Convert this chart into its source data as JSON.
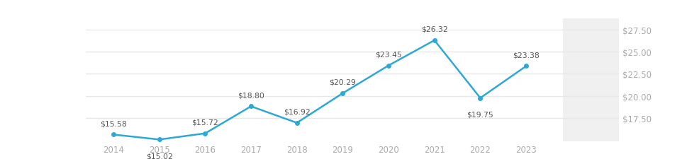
{
  "years": [
    2014,
    2015,
    2016,
    2017,
    2018,
    2019,
    2020,
    2021,
    2022,
    2023
  ],
  "values": [
    15.58,
    15.02,
    15.72,
    18.8,
    16.92,
    20.29,
    23.45,
    26.32,
    19.75,
    23.38
  ],
  "labels": [
    "$15.58",
    "$15.02",
    "$15.72",
    "$18.80",
    "$16.92",
    "$20.29",
    "$23.45",
    "$26.32",
    "$19.75",
    "$23.38"
  ],
  "label_offsets_y": [
    8,
    -13,
    8,
    8,
    8,
    8,
    8,
    8,
    -13,
    8
  ],
  "line_color": "#2ea8d5",
  "marker_color": "#2ea8d5",
  "bg_color": "#ffffff",
  "plot_bg_color": "#ffffff",
  "right_panel_bg": "#f0f0f0",
  "grid_color": "#e8e8e8",
  "yticks": [
    17.5,
    20.0,
    22.5,
    25.0,
    27.5
  ],
  "ytick_labels": [
    "$17.50",
    "$20.00",
    "$22.50",
    "$25.00",
    "$27.50"
  ],
  "ylim": [
    14.8,
    28.8
  ],
  "xlim": [
    2013.4,
    2023.8
  ],
  "label_fontsize": 7.8,
  "tick_fontsize": 8.5,
  "label_color": "#555555",
  "tick_color": "#aaaaaa"
}
